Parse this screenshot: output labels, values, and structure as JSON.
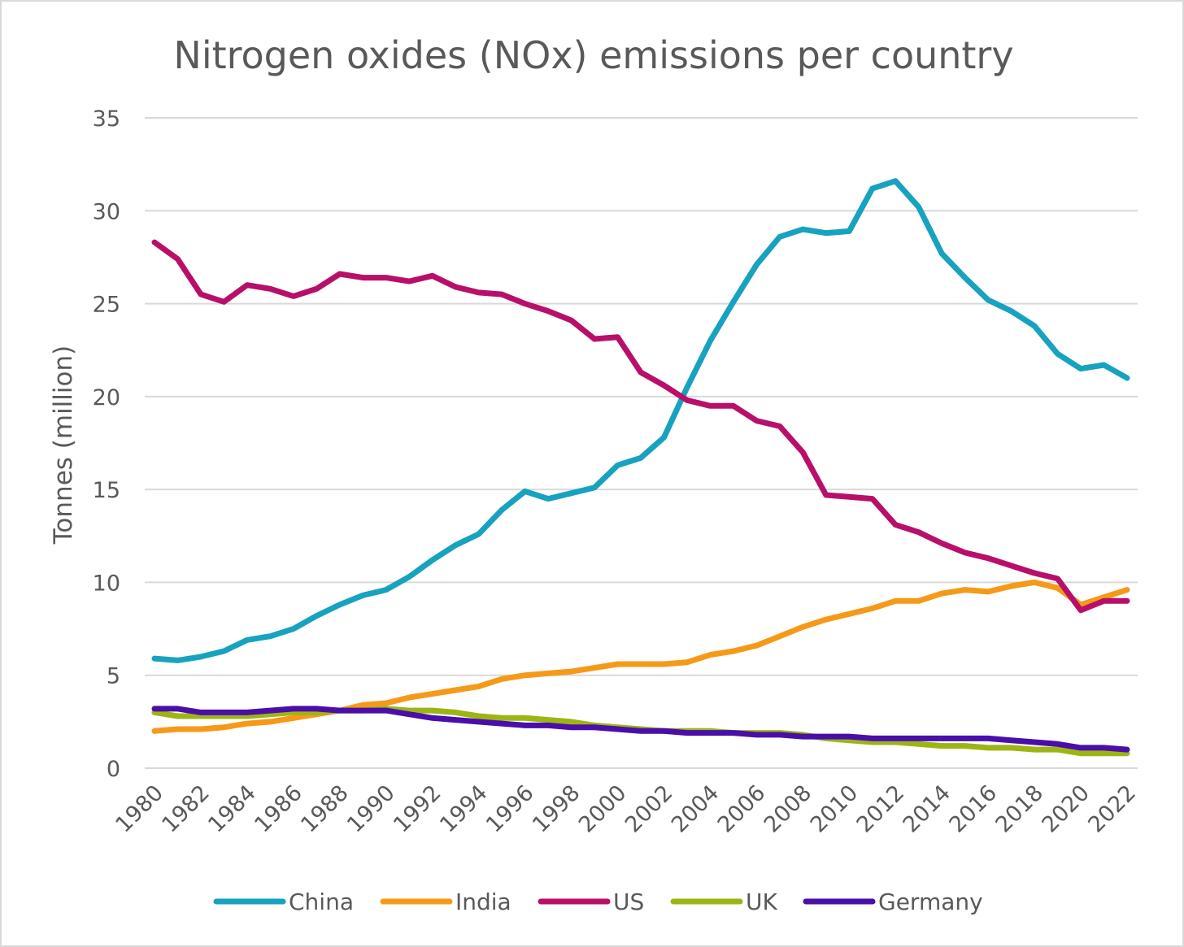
{
  "chart_data": {
    "type": "line",
    "title": "Nitrogen oxides (NOx) emissions per country",
    "xlabel": "",
    "ylabel": "Tonnes (million)",
    "ylim": [
      0,
      35
    ],
    "yticks": [
      "0",
      "5",
      "10",
      "15",
      "20",
      "25",
      "30",
      "35"
    ],
    "xlim": [
      1980,
      2022
    ],
    "xtick_labels": [
      "1980",
      "1982",
      "1984",
      "1986",
      "1988",
      "1990",
      "1992",
      "1994",
      "1996",
      "1998",
      "2000",
      "2002",
      "2004",
      "2006",
      "2008",
      "2010",
      "2012",
      "2014",
      "2016",
      "2018",
      "2020",
      "2022"
    ],
    "grid": "horizontal",
    "legend_position": "bottom",
    "x": [
      1980,
      1981,
      1982,
      1983,
      1984,
      1985,
      1986,
      1987,
      1988,
      1989,
      1990,
      1991,
      1992,
      1993,
      1994,
      1995,
      1996,
      1997,
      1998,
      1999,
      2000,
      2001,
      2002,
      2003,
      2004,
      2005,
      2006,
      2007,
      2008,
      2009,
      2010,
      2011,
      2012,
      2013,
      2014,
      2015,
      2016,
      2017,
      2018,
      2019,
      2020,
      2021,
      2022
    ],
    "series": [
      {
        "name": "China",
        "color": "#17a2c0",
        "values": [
          5.9,
          5.8,
          6.0,
          6.3,
          6.9,
          7.1,
          7.5,
          8.2,
          8.8,
          9.3,
          9.6,
          10.3,
          11.2,
          12.0,
          12.6,
          13.9,
          14.9,
          14.5,
          14.8,
          15.1,
          16.3,
          16.7,
          17.8,
          20.5,
          23.0,
          25.1,
          27.1,
          28.6,
          29.0,
          28.8,
          28.9,
          31.2,
          31.6,
          30.2,
          27.7,
          26.4,
          25.2,
          24.6,
          23.8,
          22.3,
          21.5,
          21.7,
          21.0
        ]
      },
      {
        "name": "India",
        "color": "#f59a18",
        "values": [
          2.0,
          2.1,
          2.1,
          2.2,
          2.4,
          2.5,
          2.7,
          2.9,
          3.1,
          3.4,
          3.5,
          3.8,
          4.0,
          4.2,
          4.4,
          4.8,
          5.0,
          5.1,
          5.2,
          5.4,
          5.6,
          5.6,
          5.6,
          5.7,
          6.1,
          6.3,
          6.6,
          7.1,
          7.6,
          8.0,
          8.3,
          8.6,
          9.0,
          9.0,
          9.4,
          9.6,
          9.5,
          9.8,
          10.0,
          9.7,
          8.8,
          9.2,
          9.6
        ]
      },
      {
        "name": "US",
        "color": "#b8106a",
        "values": [
          28.3,
          27.4,
          25.5,
          25.1,
          26.0,
          25.8,
          25.4,
          25.8,
          26.6,
          26.4,
          26.4,
          26.2,
          26.5,
          25.9,
          25.6,
          25.5,
          25.0,
          24.6,
          24.1,
          23.1,
          23.2,
          21.3,
          20.6,
          19.8,
          19.5,
          19.5,
          18.7,
          18.4,
          17.0,
          14.7,
          14.6,
          14.5,
          13.1,
          12.7,
          12.1,
          11.6,
          11.3,
          10.9,
          10.5,
          10.2,
          8.5,
          9.0,
          9.0
        ]
      },
      {
        "name": "UK",
        "color": "#9db514",
        "values": [
          3.0,
          2.8,
          2.8,
          2.8,
          2.8,
          2.9,
          3.0,
          3.0,
          3.1,
          3.1,
          3.2,
          3.1,
          3.1,
          3.0,
          2.8,
          2.7,
          2.7,
          2.6,
          2.5,
          2.3,
          2.2,
          2.1,
          2.0,
          2.0,
          2.0,
          1.9,
          1.9,
          1.9,
          1.8,
          1.6,
          1.5,
          1.4,
          1.4,
          1.3,
          1.2,
          1.2,
          1.1,
          1.1,
          1.0,
          1.0,
          0.8,
          0.8,
          0.8
        ]
      },
      {
        "name": "Germany",
        "color": "#4a0fa8",
        "values": [
          3.2,
          3.2,
          3.0,
          3.0,
          3.0,
          3.1,
          3.2,
          3.2,
          3.1,
          3.1,
          3.1,
          2.9,
          2.7,
          2.6,
          2.5,
          2.4,
          2.3,
          2.3,
          2.2,
          2.2,
          2.1,
          2.0,
          2.0,
          1.9,
          1.9,
          1.9,
          1.8,
          1.8,
          1.7,
          1.7,
          1.7,
          1.6,
          1.6,
          1.6,
          1.6,
          1.6,
          1.6,
          1.5,
          1.4,
          1.3,
          1.1,
          1.1,
          1.0
        ]
      }
    ]
  }
}
